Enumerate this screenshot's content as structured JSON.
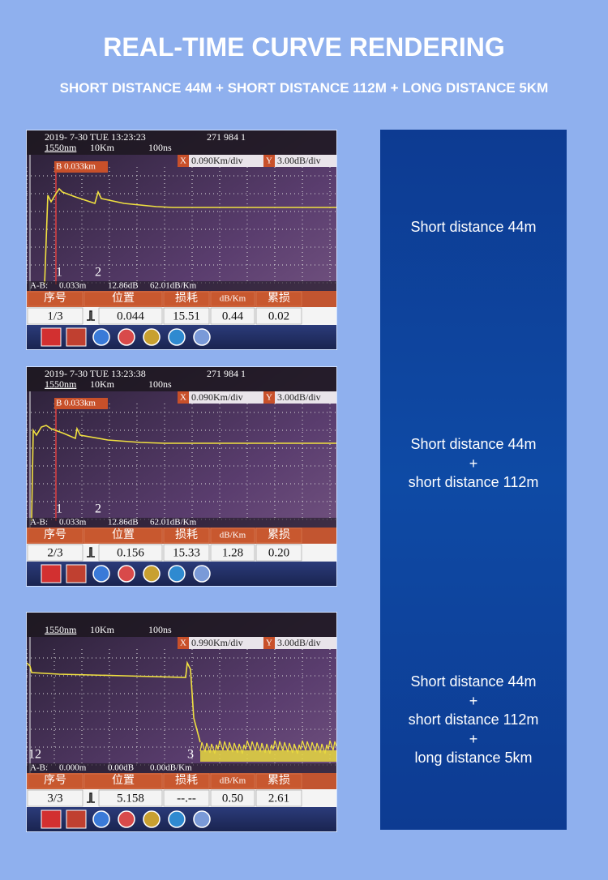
{
  "title": "REAL-TIME CURVE RENDERING",
  "subtitle": "SHORT DISTANCE 44M + SHORT DISTANCE 112M + LONG DISTANCE 5KM",
  "panels": [
    {
      "screen": {
        "status": {
          "date": "2019- 7-30 TUE 13:23:23",
          "counter": "271 984 1"
        },
        "settings": {
          "wavelength": "1550nm",
          "range": "10Km",
          "pulse": "100ns"
        },
        "x_scale": {
          "label": "X",
          "value": "0.090Km/div"
        },
        "y_scale": {
          "label": "Y",
          "value": "3.00dB/div"
        },
        "marker_label": "B 0.033km",
        "markers": [
          "1",
          "2"
        ],
        "ab": {
          "label": "A-B:",
          "distance": "0.033m",
          "loss": "12.86dB",
          "slope": "62.01dB/Km"
        },
        "table": {
          "header": [
            "序号",
            "位置",
            "损耗",
            "dB/Km",
            "累损"
          ],
          "row": [
            "1/3",
            "0.044",
            "15.51",
            "0.44",
            "0.02"
          ]
        }
      },
      "description": [
        "Short distance 44m"
      ]
    },
    {
      "screen": {
        "status": {
          "date": "2019- 7-30 TUE 13:23:38",
          "counter": "271 984 1"
        },
        "settings": {
          "wavelength": "1550nm",
          "range": "10Km",
          "pulse": "100ns"
        },
        "x_scale": {
          "label": "X",
          "value": "0.090Km/div"
        },
        "y_scale": {
          "label": "Y",
          "value": "3.00dB/div"
        },
        "marker_label": "B 0.033km",
        "markers": [
          "1",
          "2"
        ],
        "ab": {
          "label": "A-B:",
          "distance": "0.033m",
          "loss": "12.86dB",
          "slope": "62.01dB/Km"
        },
        "table": {
          "header": [
            "序号",
            "位置",
            "损耗",
            "dB/Km",
            "累损"
          ],
          "row": [
            "2/3",
            "0.156",
            "15.33",
            "1.28",
            "0.20"
          ]
        }
      },
      "description": [
        "Short distance 44m",
        "+",
        "short distance 112m"
      ]
    },
    {
      "screen": {
        "settings": {
          "wavelength": "1550nm",
          "range": "10Km",
          "pulse": "100ns"
        },
        "x_scale": {
          "label": "X",
          "value": "0.990Km/div"
        },
        "y_scale": {
          "label": "Y",
          "value": "3.00dB/div"
        },
        "markers": [
          "12",
          "3"
        ],
        "ab": {
          "label": "A-B:",
          "distance": "0.000m",
          "loss": "0.00dB",
          "slope": "0.00dB/Km"
        },
        "table": {
          "header": [
            "序号",
            "位置",
            "损耗",
            "dB/Km",
            "累损"
          ],
          "row": [
            "3/3",
            "5.158",
            "--.--",
            "0.50",
            "2.61"
          ]
        }
      },
      "description": [
        "Short distance 44m",
        "+",
        "short distance 112m",
        "+",
        "long distance 5km"
      ]
    }
  ]
}
